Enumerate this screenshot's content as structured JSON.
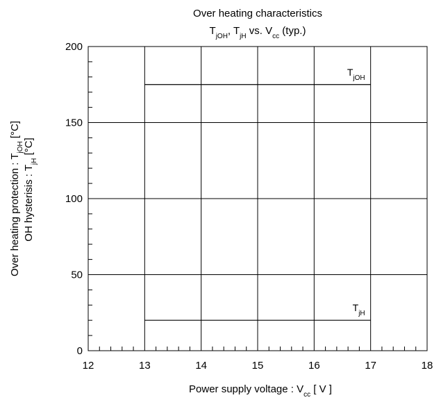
{
  "chart_data": {
    "type": "line",
    "title": "Over heating characteristics",
    "subtitle": {
      "parts": [
        {
          "t": "T",
          "sub": "jOH"
        },
        {
          "t": ", T",
          "sub": "jH"
        },
        {
          "t": "   vs. V",
          "sub": "cc"
        },
        {
          "t": "   (typ.)",
          "sub": ""
        }
      ]
    },
    "xlabel": {
      "parts": [
        {
          "t": "Power supply voltage : V",
          "sub": "cc"
        },
        {
          "t": " [ V ]",
          "sub": ""
        }
      ]
    },
    "ylabel_line1": {
      "parts": [
        {
          "t": "Over heating protection : T",
          "sub": "jOH"
        },
        {
          "t": " [°C]",
          "sub": ""
        }
      ]
    },
    "ylabel_line2": {
      "parts": [
        {
          "t": "OH hysterisis : T",
          "sub": "jH"
        },
        {
          "t": " [°C]",
          "sub": ""
        }
      ]
    },
    "xlim": [
      12,
      18
    ],
    "ylim": [
      0,
      200
    ],
    "x_ticks": [
      12,
      13,
      14,
      15,
      16,
      17,
      18
    ],
    "y_ticks": [
      0,
      50,
      100,
      150,
      200
    ],
    "grid": true,
    "series": [
      {
        "name": "TjOH",
        "label": {
          "parts": [
            {
              "t": "T",
              "sub": "jOH"
            }
          ]
        },
        "x": [
          13,
          17
        ],
        "y": [
          175,
          175
        ],
        "label_anchor": {
          "x": 17,
          "y": 175
        }
      },
      {
        "name": "TjH",
        "label": {
          "parts": [
            {
              "t": "T",
              "sub": "jH"
            }
          ]
        },
        "x": [
          13,
          17
        ],
        "y": [
          20,
          20
        ],
        "label_anchor": {
          "x": 17,
          "y": 20
        }
      }
    ]
  }
}
